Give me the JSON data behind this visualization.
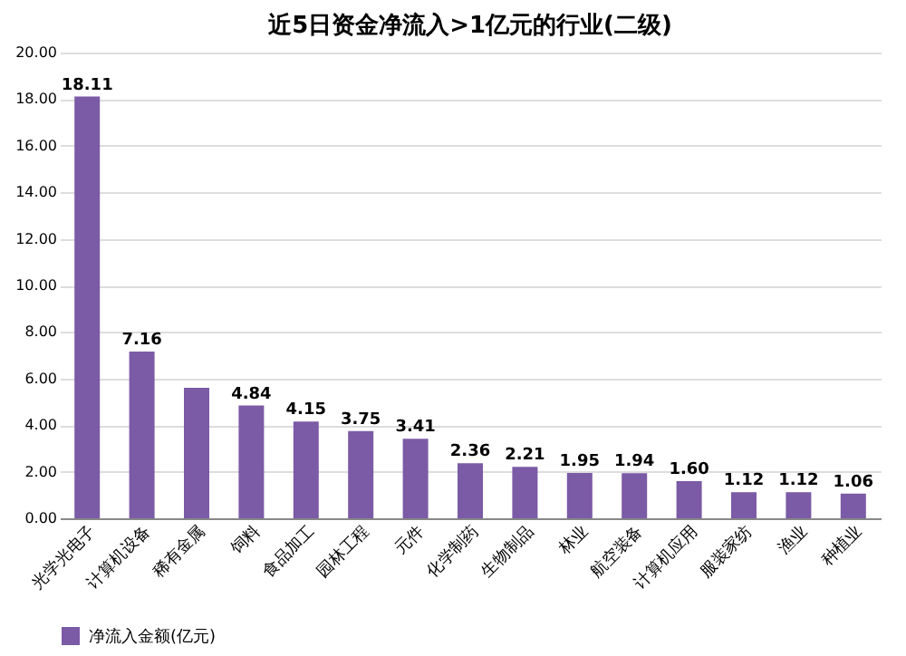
{
  "chart_data": {
    "type": "bar",
    "title": "近5日资金净流入>1亿元的行业(二级)",
    "categories": [
      "光学光电子",
      "计算机设备",
      "稀有金属",
      "饲料",
      "食品加工",
      "园林工程",
      "元件",
      "化学制药",
      "生物制品",
      "林业",
      "航空装备",
      "计算机应用",
      "服装家纺",
      "渔业",
      "种植业"
    ],
    "series": [
      {
        "name": "净流入金额(亿元)",
        "color": "#7b5aa6",
        "values": [
          18.11,
          7.16,
          5.6,
          4.84,
          4.15,
          3.75,
          3.41,
          2.36,
          2.21,
          1.95,
          1.94,
          1.6,
          1.12,
          1.12,
          1.06
        ],
        "value_labels": [
          "18.11",
          "7.16",
          null,
          "4.84",
          "4.15",
          "3.75",
          "3.41",
          "2.36",
          "2.21",
          "1.95",
          "1.94",
          "1.60",
          "1.12",
          "1.12",
          "1.06"
        ]
      }
    ],
    "ylim": [
      0,
      20
    ],
    "yticks": [
      {
        "value": 0,
        "label": "0.00"
      },
      {
        "value": 2,
        "label": "2.00"
      },
      {
        "value": 4,
        "label": "4.00"
      },
      {
        "value": 6,
        "label": "6.00"
      },
      {
        "value": 8,
        "label": "8.00"
      },
      {
        "value": 10,
        "label": "10.00"
      },
      {
        "value": 12,
        "label": "12.00"
      },
      {
        "value": 14,
        "label": "14.00"
      },
      {
        "value": 16,
        "label": "16.00"
      },
      {
        "value": 18,
        "label": "18.00"
      },
      {
        "value": 20,
        "label": "20.00"
      }
    ],
    "grid": "y",
    "legend": "bottom"
  }
}
